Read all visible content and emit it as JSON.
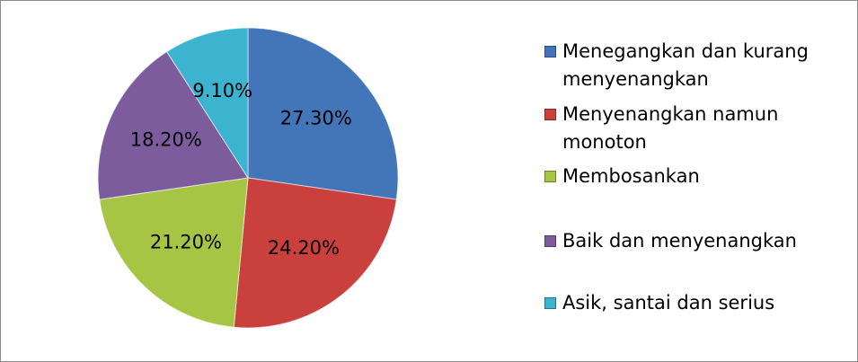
{
  "chart_data": {
    "type": "pie",
    "categories": [
      "Menegangkan dan kurang menyenangkan",
      "Menyenangkan namun monoton",
      "Membosankan",
      "Baik dan menyenangkan",
      "Asik, santai dan serius"
    ],
    "values": [
      27.3,
      24.2,
      21.2,
      18.2,
      9.1
    ],
    "value_labels": [
      "27.30%",
      "24.20%",
      "21.20%",
      "18.20%",
      "9.10%"
    ],
    "colors": [
      "#4375b9",
      "#c9403c",
      "#a6c545",
      "#7d5c9e",
      "#3cb3cf"
    ],
    "legend": "right"
  }
}
